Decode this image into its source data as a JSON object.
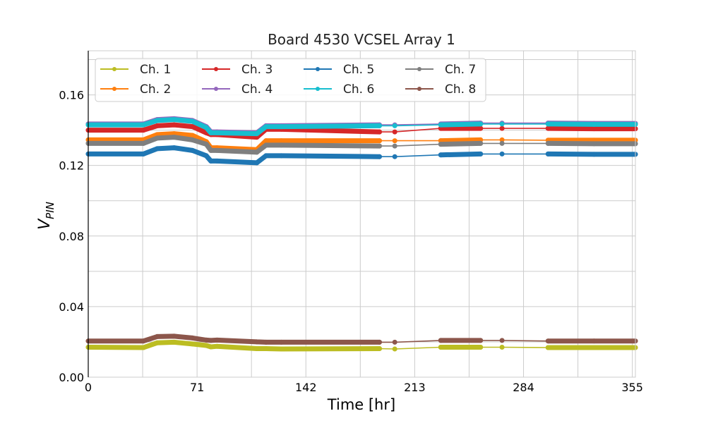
{
  "chart_data": {
    "type": "line",
    "title": "Board 4530 VCSEL Array 1",
    "xlabel": "Time [hr]",
    "ylabel_main": "V",
    "ylabel_sub": "PIN",
    "xlim": [
      0,
      357
    ],
    "ylim": [
      0,
      0.185
    ],
    "xticks": [
      0,
      71,
      142,
      213,
      284,
      355
    ],
    "xtick_labels": [
      "0",
      "71",
      "142",
      "213",
      "284",
      "355"
    ],
    "yticks": [
      0,
      0.04,
      0.08,
      0.12,
      0.16
    ],
    "ytick_labels": [
      "0.00",
      "0.04",
      "0.08",
      "0.12",
      "0.16"
    ],
    "grid": true,
    "legend_position": "top-left",
    "legend_columns": 4,
    "x": [
      0,
      36,
      45,
      56,
      68,
      77,
      80,
      84,
      110,
      116,
      126,
      190,
      200,
      230,
      256,
      270,
      300,
      330,
      357
    ],
    "segment_breaks": [
      11,
      12,
      14,
      15
    ],
    "series": [
      {
        "name": "Ch. 1",
        "color": "#bcbd22",
        "values": [
          0.017,
          0.0168,
          0.0195,
          0.0198,
          0.0188,
          0.018,
          0.0172,
          0.0175,
          0.0162,
          0.0162,
          0.016,
          0.0162,
          0.016,
          0.017,
          0.017,
          0.017,
          0.0168,
          0.0168,
          0.0168
        ]
      },
      {
        "name": "Ch. 2",
        "color": "#ff7f0e",
        "values": [
          0.1345,
          0.1345,
          0.1375,
          0.138,
          0.137,
          0.1335,
          0.13,
          0.13,
          0.129,
          0.134,
          0.134,
          0.134,
          0.134,
          0.134,
          0.1345,
          0.1345,
          0.1343,
          0.1343,
          0.1343
        ]
      },
      {
        "name": "Ch. 3",
        "color": "#d62728",
        "values": [
          0.14,
          0.14,
          0.1425,
          0.143,
          0.142,
          0.1385,
          0.1375,
          0.1375,
          0.136,
          0.1405,
          0.1405,
          0.139,
          0.139,
          0.141,
          0.141,
          0.141,
          0.141,
          0.1408,
          0.1408
        ]
      },
      {
        "name": "Ch. 4",
        "color": "#9467bd",
        "values": [
          0.1435,
          0.1435,
          0.146,
          0.1465,
          0.1455,
          0.142,
          0.139,
          0.139,
          0.1385,
          0.1425,
          0.1425,
          0.143,
          0.143,
          0.1435,
          0.144,
          0.144,
          0.144,
          0.1438,
          0.1438
        ]
      },
      {
        "name": "Ch. 5",
        "color": "#1f77b4",
        "values": [
          0.1265,
          0.1265,
          0.1295,
          0.13,
          0.1285,
          0.1255,
          0.1225,
          0.1225,
          0.1215,
          0.1255,
          0.1255,
          0.125,
          0.125,
          0.126,
          0.1265,
          0.1265,
          0.1265,
          0.1263,
          0.1263
        ]
      },
      {
        "name": "Ch. 6",
        "color": "#17becf",
        "values": [
          0.143,
          0.143,
          0.1455,
          0.146,
          0.145,
          0.1415,
          0.1385,
          0.1385,
          0.138,
          0.142,
          0.142,
          0.1425,
          0.1425,
          0.143,
          0.1435,
          0.1435,
          0.1435,
          0.1433,
          0.1433
        ]
      },
      {
        "name": "Ch. 7",
        "color": "#7f7f7f",
        "values": [
          0.1325,
          0.1325,
          0.1355,
          0.136,
          0.1345,
          0.132,
          0.1285,
          0.1285,
          0.1275,
          0.1315,
          0.1315,
          0.131,
          0.131,
          0.132,
          0.1325,
          0.1325,
          0.1325,
          0.1323,
          0.1323
        ]
      },
      {
        "name": "Ch. 8",
        "color": "#8c564b",
        "values": [
          0.0205,
          0.0205,
          0.023,
          0.0232,
          0.0222,
          0.021,
          0.0208,
          0.021,
          0.02,
          0.0198,
          0.0198,
          0.0198,
          0.0198,
          0.0208,
          0.0208,
          0.0208,
          0.0205,
          0.0205,
          0.0205
        ]
      }
    ]
  }
}
